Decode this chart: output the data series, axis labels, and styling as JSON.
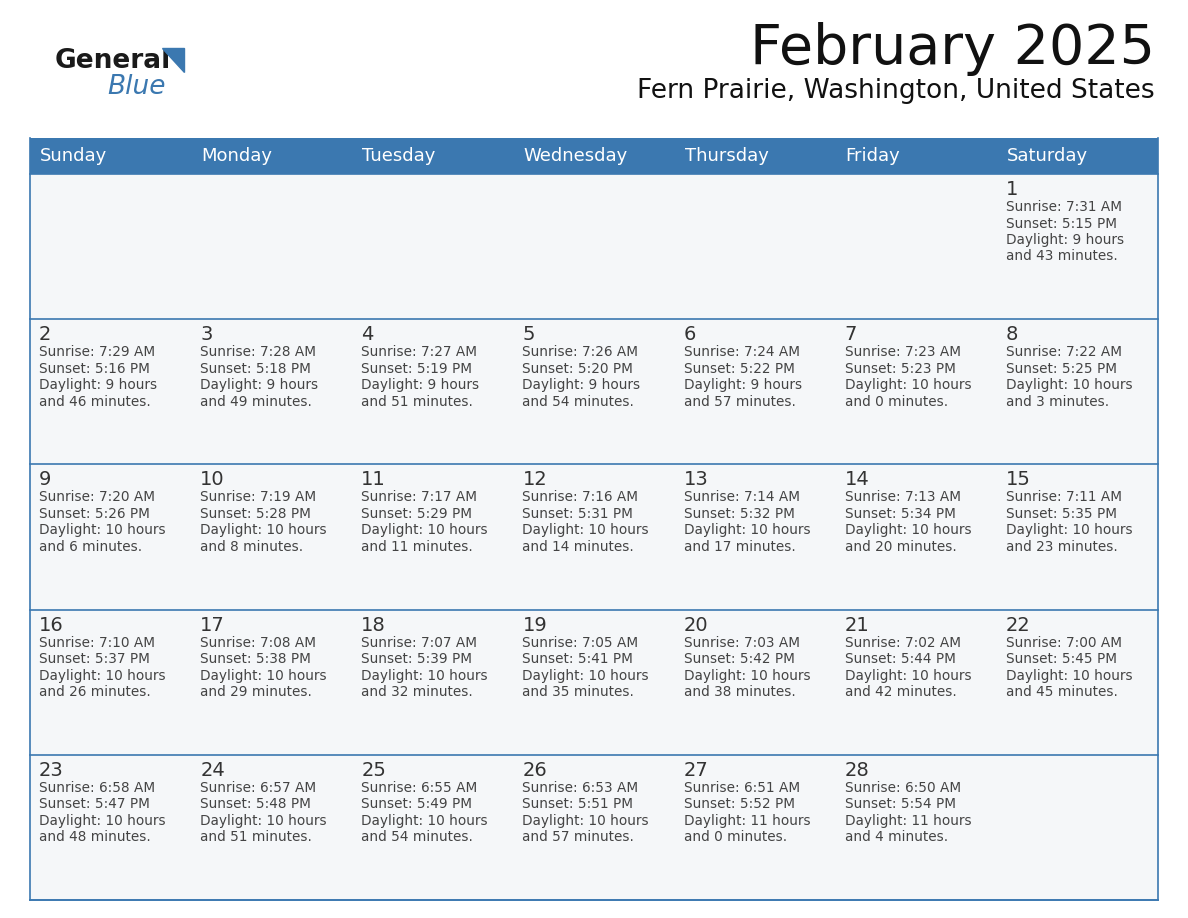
{
  "title": "February 2025",
  "subtitle": "Fern Prairie, Washington, United States",
  "days_of_week": [
    "Sunday",
    "Monday",
    "Tuesday",
    "Wednesday",
    "Thursday",
    "Friday",
    "Saturday"
  ],
  "header_bg": "#3b78b0",
  "header_text": "#ffffff",
  "separator_color": "#3b78b0",
  "cell_bg": "#f5f7f9",
  "text_color": "#444444",
  "day_number_color": "#333333",
  "logo_general_color": "#1a1a1a",
  "logo_blue_color": "#3b78b0",
  "calendar_data": [
    [
      null,
      null,
      null,
      null,
      null,
      null,
      {
        "day": 1,
        "sunrise": "7:31 AM",
        "sunset": "5:15 PM",
        "daylight": "9 hours and 43 minutes."
      }
    ],
    [
      {
        "day": 2,
        "sunrise": "7:29 AM",
        "sunset": "5:16 PM",
        "daylight": "9 hours and 46 minutes."
      },
      {
        "day": 3,
        "sunrise": "7:28 AM",
        "sunset": "5:18 PM",
        "daylight": "9 hours and 49 minutes."
      },
      {
        "day": 4,
        "sunrise": "7:27 AM",
        "sunset": "5:19 PM",
        "daylight": "9 hours and 51 minutes."
      },
      {
        "day": 5,
        "sunrise": "7:26 AM",
        "sunset": "5:20 PM",
        "daylight": "9 hours and 54 minutes."
      },
      {
        "day": 6,
        "sunrise": "7:24 AM",
        "sunset": "5:22 PM",
        "daylight": "9 hours and 57 minutes."
      },
      {
        "day": 7,
        "sunrise": "7:23 AM",
        "sunset": "5:23 PM",
        "daylight": "10 hours and 0 minutes."
      },
      {
        "day": 8,
        "sunrise": "7:22 AM",
        "sunset": "5:25 PM",
        "daylight": "10 hours and 3 minutes."
      }
    ],
    [
      {
        "day": 9,
        "sunrise": "7:20 AM",
        "sunset": "5:26 PM",
        "daylight": "10 hours and 6 minutes."
      },
      {
        "day": 10,
        "sunrise": "7:19 AM",
        "sunset": "5:28 PM",
        "daylight": "10 hours and 8 minutes."
      },
      {
        "day": 11,
        "sunrise": "7:17 AM",
        "sunset": "5:29 PM",
        "daylight": "10 hours and 11 minutes."
      },
      {
        "day": 12,
        "sunrise": "7:16 AM",
        "sunset": "5:31 PM",
        "daylight": "10 hours and 14 minutes."
      },
      {
        "day": 13,
        "sunrise": "7:14 AM",
        "sunset": "5:32 PM",
        "daylight": "10 hours and 17 minutes."
      },
      {
        "day": 14,
        "sunrise": "7:13 AM",
        "sunset": "5:34 PM",
        "daylight": "10 hours and 20 minutes."
      },
      {
        "day": 15,
        "sunrise": "7:11 AM",
        "sunset": "5:35 PM",
        "daylight": "10 hours and 23 minutes."
      }
    ],
    [
      {
        "day": 16,
        "sunrise": "7:10 AM",
        "sunset": "5:37 PM",
        "daylight": "10 hours and 26 minutes."
      },
      {
        "day": 17,
        "sunrise": "7:08 AM",
        "sunset": "5:38 PM",
        "daylight": "10 hours and 29 minutes."
      },
      {
        "day": 18,
        "sunrise": "7:07 AM",
        "sunset": "5:39 PM",
        "daylight": "10 hours and 32 minutes."
      },
      {
        "day": 19,
        "sunrise": "7:05 AM",
        "sunset": "5:41 PM",
        "daylight": "10 hours and 35 minutes."
      },
      {
        "day": 20,
        "sunrise": "7:03 AM",
        "sunset": "5:42 PM",
        "daylight": "10 hours and 38 minutes."
      },
      {
        "day": 21,
        "sunrise": "7:02 AM",
        "sunset": "5:44 PM",
        "daylight": "10 hours and 42 minutes."
      },
      {
        "day": 22,
        "sunrise": "7:00 AM",
        "sunset": "5:45 PM",
        "daylight": "10 hours and 45 minutes."
      }
    ],
    [
      {
        "day": 23,
        "sunrise": "6:58 AM",
        "sunset": "5:47 PM",
        "daylight": "10 hours and 48 minutes."
      },
      {
        "day": 24,
        "sunrise": "6:57 AM",
        "sunset": "5:48 PM",
        "daylight": "10 hours and 51 minutes."
      },
      {
        "day": 25,
        "sunrise": "6:55 AM",
        "sunset": "5:49 PM",
        "daylight": "10 hours and 54 minutes."
      },
      {
        "day": 26,
        "sunrise": "6:53 AM",
        "sunset": "5:51 PM",
        "daylight": "10 hours and 57 minutes."
      },
      {
        "day": 27,
        "sunrise": "6:51 AM",
        "sunset": "5:52 PM",
        "daylight": "11 hours and 0 minutes."
      },
      {
        "day": 28,
        "sunrise": "6:50 AM",
        "sunset": "5:54 PM",
        "daylight": "11 hours and 4 minutes."
      },
      null
    ]
  ],
  "figsize": [
    11.88,
    9.18
  ],
  "dpi": 100
}
